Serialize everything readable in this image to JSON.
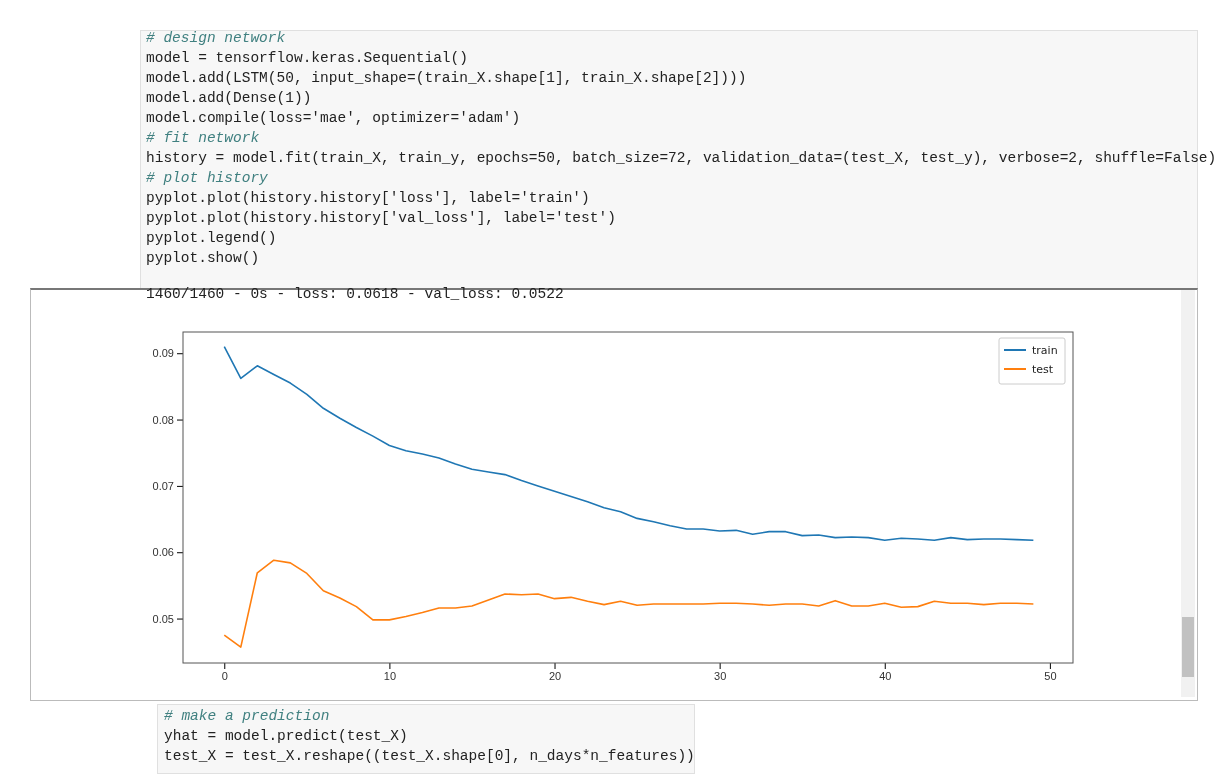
{
  "chart_data": {
    "type": "line",
    "x": [
      0,
      1,
      2,
      3,
      4,
      5,
      6,
      7,
      8,
      9,
      10,
      11,
      12,
      13,
      14,
      15,
      16,
      17,
      18,
      19,
      20,
      21,
      22,
      23,
      24,
      25,
      26,
      27,
      28,
      29,
      30,
      31,
      32,
      33,
      34,
      35,
      36,
      37,
      38,
      39,
      40,
      41,
      42,
      43,
      44,
      45,
      46,
      47,
      48,
      49
    ],
    "series": [
      {
        "name": "train",
        "color": "#1f77b4",
        "values": [
          0.091,
          0.0862,
          0.0881,
          0.0868,
          0.0855,
          0.0838,
          0.0817,
          0.0802,
          0.0788,
          0.0775,
          0.0761,
          0.0753,
          0.0748,
          0.0742,
          0.0733,
          0.0725,
          0.0721,
          0.0717,
          0.0708,
          0.07,
          0.0692,
          0.0684,
          0.0676,
          0.0667,
          0.0661,
          0.0651,
          0.0646,
          0.064,
          0.0635,
          0.0635,
          0.0632,
          0.0633,
          0.0627,
          0.0631,
          0.0631,
          0.0625,
          0.0626,
          0.0622,
          0.0623,
          0.0622,
          0.0618,
          0.0621,
          0.062,
          0.0618,
          0.0622,
          0.0619,
          0.062,
          0.062,
          0.0619,
          0.0618
        ]
      },
      {
        "name": "test",
        "color": "#ff7f0e",
        "values": [
          0.0475,
          0.0457,
          0.0569,
          0.0588,
          0.0584,
          0.0568,
          0.0542,
          0.0531,
          0.0518,
          0.0498,
          0.0498,
          0.0503,
          0.0509,
          0.0516,
          0.0516,
          0.0519,
          0.0528,
          0.0537,
          0.0536,
          0.0537,
          0.053,
          0.0532,
          0.0526,
          0.0521,
          0.0526,
          0.052,
          0.0522,
          0.0522,
          0.0522,
          0.0522,
          0.0523,
          0.0523,
          0.0522,
          0.052,
          0.0522,
          0.0522,
          0.0519,
          0.0527,
          0.0519,
          0.0519,
          0.0523,
          0.0517,
          0.0518,
          0.0526,
          0.0523,
          0.0523,
          0.0521,
          0.0523,
          0.0523,
          0.0522
        ]
      }
    ],
    "xlim": [
      -2.5,
      51.4
    ],
    "ylim": [
      0.0433,
      0.0932
    ],
    "xticks": [
      0,
      10,
      20,
      30,
      40,
      50
    ],
    "yticks": [
      0.05,
      0.06,
      0.07,
      0.08,
      0.09
    ],
    "legend": "top right",
    "grid": false,
    "line_style": "solid",
    "marker": "none",
    "annotations": [
      "# design network",
      "model = tensorflow.keras.Sequential()",
      "model.add(LSTM(50, input_shape=(train_X.shape[1], train_X.shape[2])))",
      "model.add(Dense(1))",
      "model.compile(loss='mae', optimizer='adam')",
      "# fit network",
      "history = model.fit(train_X, train_y, epochs=50, batch_size=72, validation_data=(test_X, test_y), verbose=2, shuffle=False)",
      "# plot history",
      "pyplot.plot(history.history['loss'], label='train')",
      "pyplot.plot(history.history['val_loss'], label='test')",
      "pyplot.legend()",
      "pyplot.show()",
      "1460/1460 - 0s - loss: 0.0618 - val_loss: 0.0522",
      "# make a prediction",
      "yhat = model.predict(test_X)",
      "test_X = test_X.reshape((test_X.shape[0], n_days*n_features))"
    ]
  }
}
